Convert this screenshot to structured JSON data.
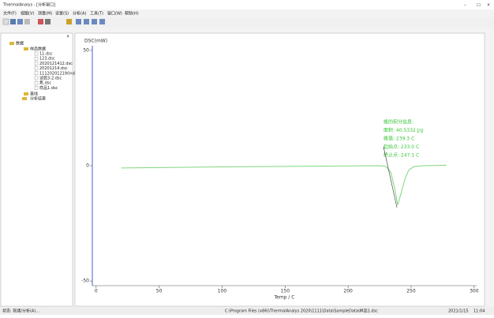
{
  "window": {
    "title": "ThermalAnalys - [分析窗口]",
    "menu": [
      "文件(F)",
      "视图(V)",
      "测量(M)",
      "设置(S)",
      "分析(A)",
      "工具(T)",
      "窗口(W)",
      "帮助(H)"
    ]
  },
  "tree": {
    "root": "数据",
    "group": "样品数据",
    "files": [
      "11.dsc",
      "123.dsc",
      "2020121412.dsc",
      "20201214.dsc",
      "11120201219(Ind).dsc",
      "试验3-2.dsc",
      "焦.dsc",
      "样品1.dsc"
    ],
    "others": [
      "基线",
      "分析结果"
    ]
  },
  "status": {
    "left": "状态: 就绪/分析(A)...",
    "path": "C:\\Program Files (x86)\\ThermalAnalys 2020\\1111\\Data\\SampleData\\样品1.dsc",
    "date": "2021/1/15",
    "time": "11:04"
  },
  "chart_data": {
    "type": "line",
    "ylabel": "DSC(mW)",
    "xlabel": "Temp / C",
    "x": [
      20,
      50,
      100,
      150,
      200,
      225,
      230,
      234,
      237,
      239.3,
      242,
      245,
      248,
      252,
      260,
      278
    ],
    "series": [
      {
        "name": "样品1.dsc",
        "color": "#7fd67f",
        "values": [
          -1,
          -0.8,
          -0.5,
          -0.3,
          -0.1,
          0,
          -0.3,
          -3,
          -10,
          -17,
          -12,
          -6,
          -2,
          -0.4,
          0,
          0.2
        ]
      }
    ],
    "xlim": [
      -3,
      302
    ],
    "ylim": [
      -52,
      52
    ],
    "xticks": [
      0,
      50,
      100,
      150,
      200,
      250,
      300
    ],
    "yticks": [
      50,
      0,
      -50
    ],
    "annotations": [
      "峰的积分信息:",
      "面积: 40.5332 J/g",
      "峰值: 239.3 C",
      "起始点: 233.0 C",
      "终止点: 247.1 C"
    ]
  }
}
